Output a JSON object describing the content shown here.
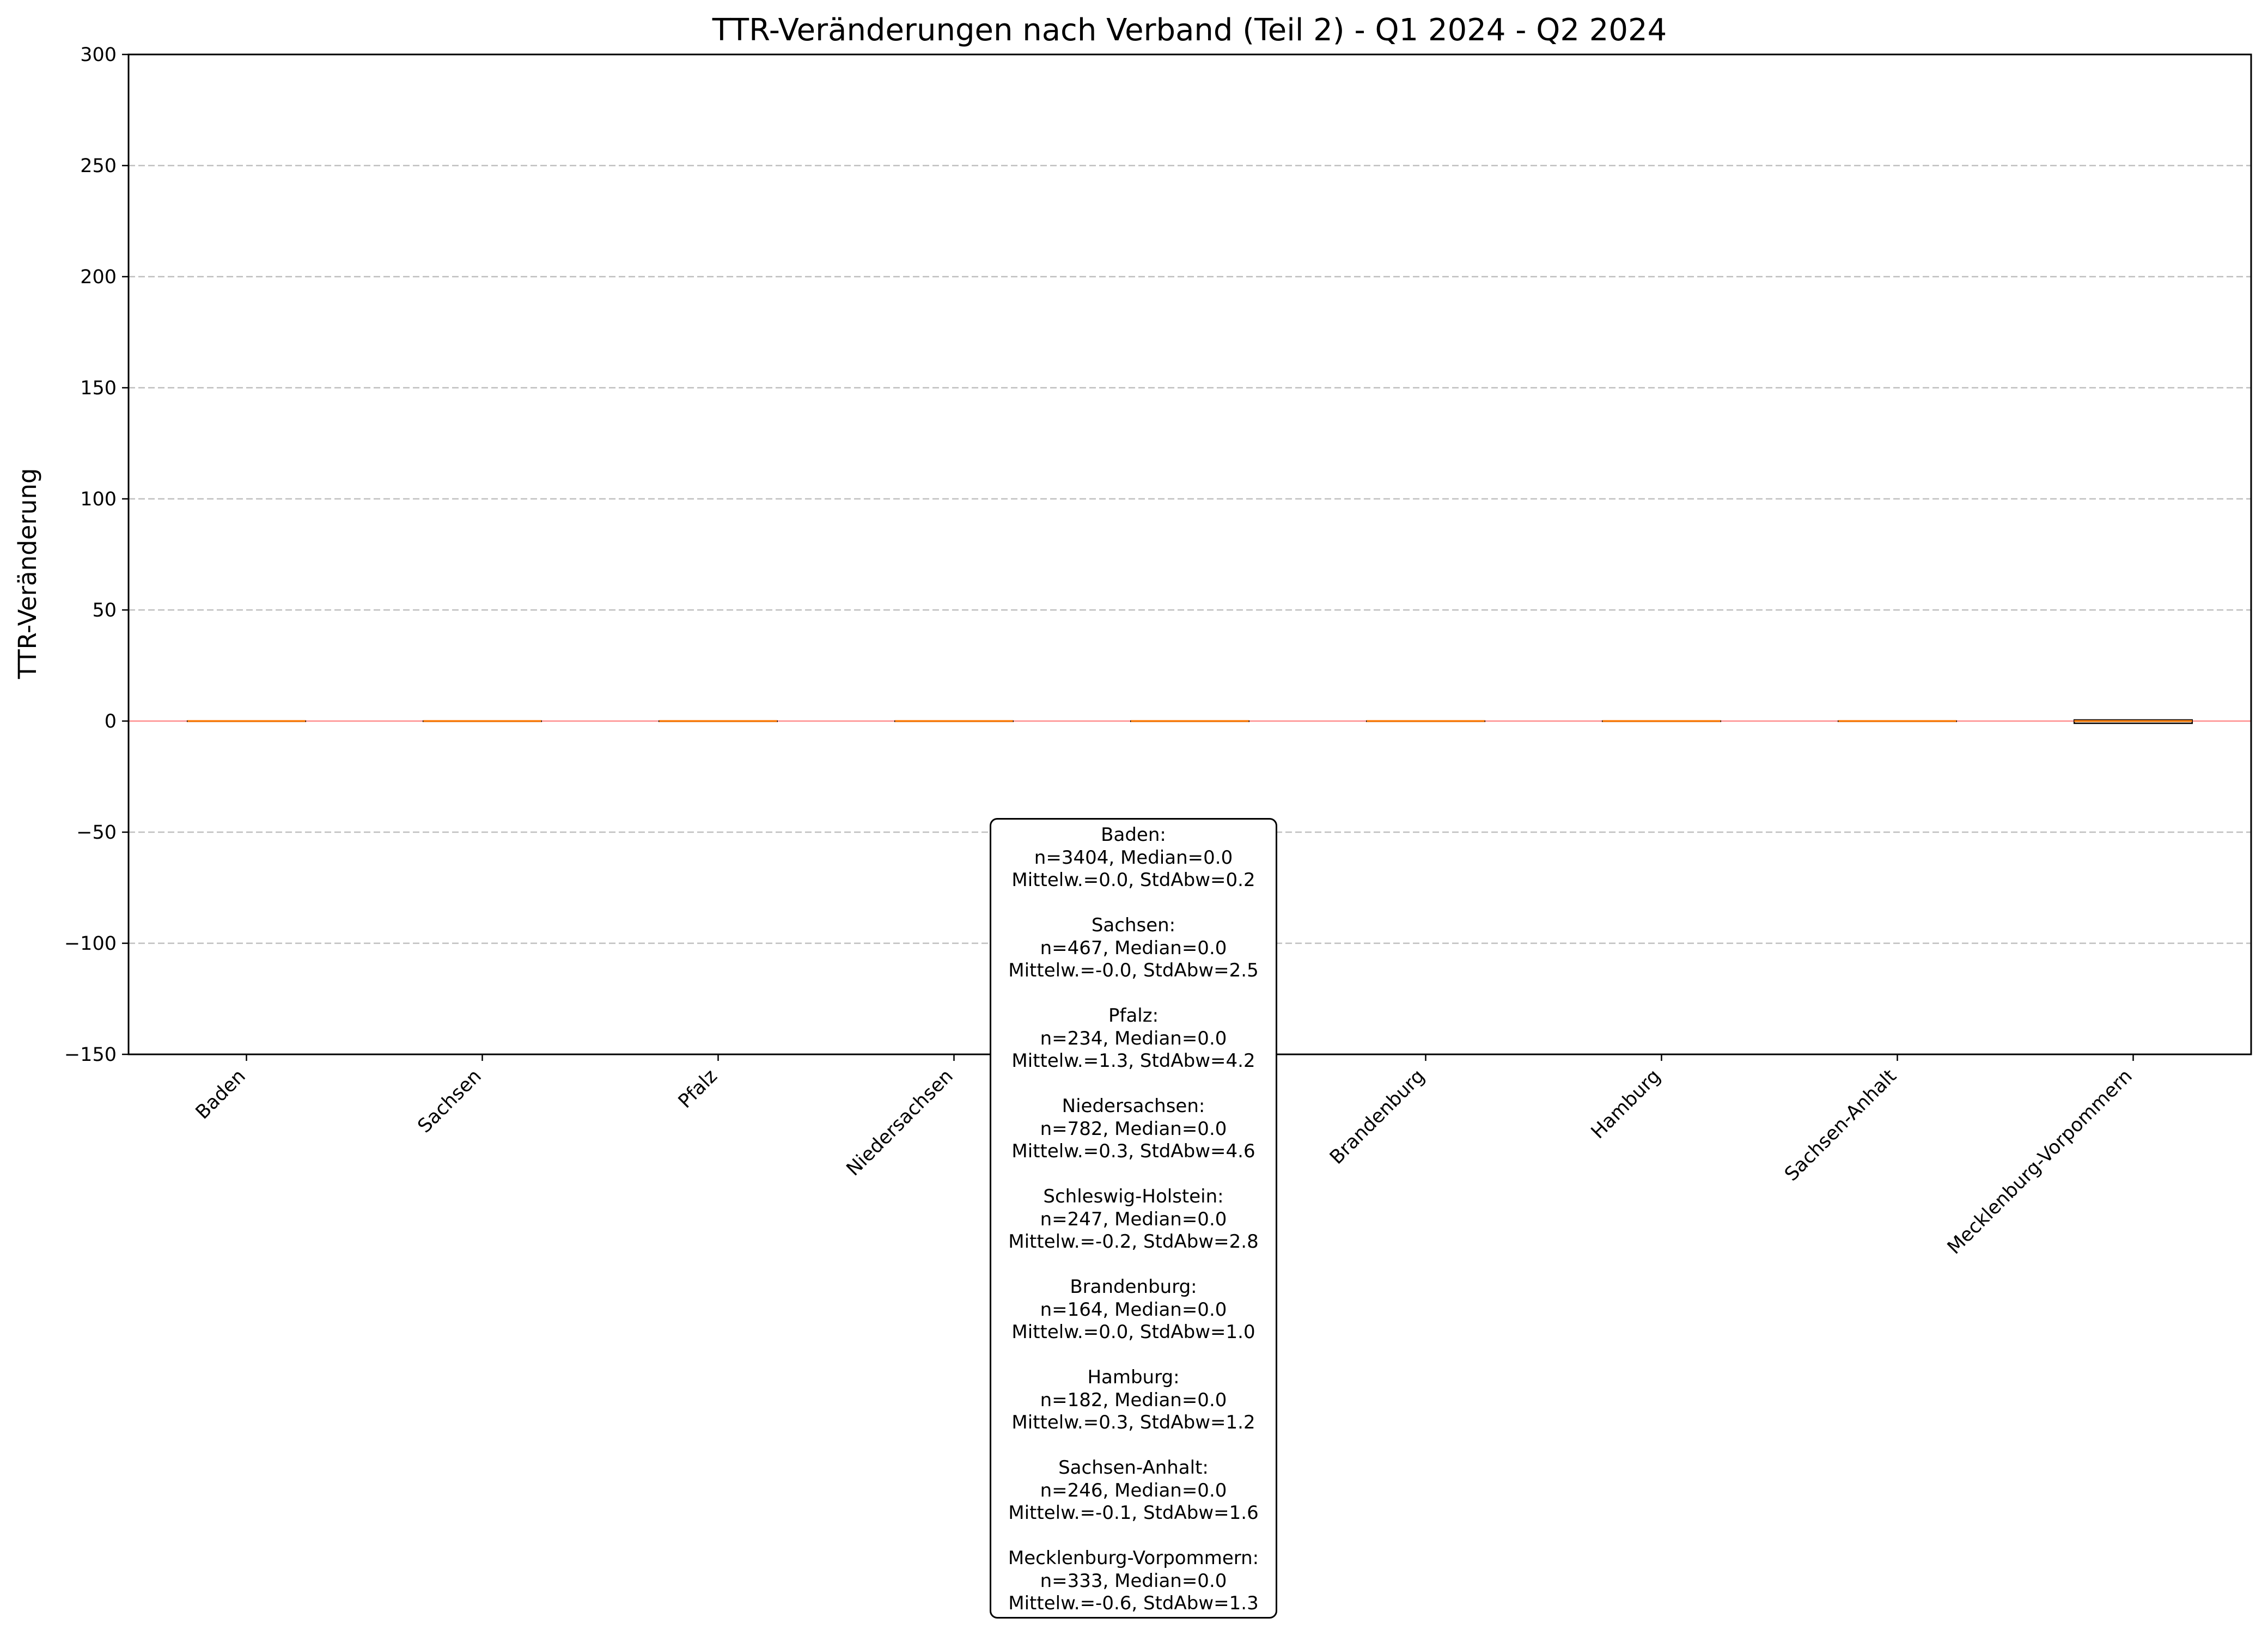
{
  "chart_data": {
    "type": "box",
    "title": "TTR-Veränderungen nach Verband (Teil 2) - Q1 2024 - Q2 2024",
    "xlabel": "",
    "ylabel": "TTR-Veränderung",
    "ylim": [
      -150,
      300
    ],
    "yticks": [
      -150,
      -100,
      -50,
      0,
      50,
      100,
      150,
      200,
      250,
      300
    ],
    "ytick_labels": [
      "−150",
      "−100",
      "−50",
      "0",
      "50",
      "100",
      "150",
      "200",
      "250",
      "300"
    ],
    "grid": "horizontal dashed",
    "reference_line": 0,
    "categories": [
      "Baden",
      "Sachsen",
      "Pfalz",
      "Niedersachsen",
      "Schleswig-Holstein",
      "Brandenburg",
      "Hamburg",
      "Sachsen-Anhalt",
      "Mecklenburg-Vorpommern"
    ],
    "boxes": [
      {
        "q1": 0,
        "median": 0,
        "q3": 0
      },
      {
        "q1": 0,
        "median": 0,
        "q3": 0
      },
      {
        "q1": 0,
        "median": 0,
        "q3": 0
      },
      {
        "q1": 0,
        "median": 0,
        "q3": 0
      },
      {
        "q1": 0,
        "median": 0,
        "q3": 0
      },
      {
        "q1": 0,
        "median": 0,
        "q3": 0
      },
      {
        "q1": 0,
        "median": 0,
        "q3": 0
      },
      {
        "q1": 0,
        "median": 0,
        "q3": 0
      },
      {
        "q1": -1,
        "median": 0,
        "q3": 0.5
      }
    ],
    "colors": {
      "median": "#ff7f0e",
      "reference": "#ff4444",
      "grid": "#b0b0b0",
      "box": "#000000"
    }
  },
  "stats_box": [
    {
      "name": "Baden:",
      "line1": "n=3404, Median=0.0",
      "line2": "Mittelw.=0.0, StdAbw=0.2"
    },
    {
      "name": "Sachsen:",
      "line1": "n=467, Median=0.0",
      "line2": "Mittelw.=-0.0, StdAbw=2.5"
    },
    {
      "name": "Pfalz:",
      "line1": "n=234, Median=0.0",
      "line2": "Mittelw.=1.3, StdAbw=4.2"
    },
    {
      "name": "Niedersachsen:",
      "line1": "n=782, Median=0.0",
      "line2": "Mittelw.=0.3, StdAbw=4.6"
    },
    {
      "name": "Schleswig-Holstein:",
      "line1": "n=247, Median=0.0",
      "line2": "Mittelw.=-0.2, StdAbw=2.8"
    },
    {
      "name": "Brandenburg:",
      "line1": "n=164, Median=0.0",
      "line2": "Mittelw.=0.0, StdAbw=1.0"
    },
    {
      "name": "Hamburg:",
      "line1": "n=182, Median=0.0",
      "line2": "Mittelw.=0.3, StdAbw=1.2"
    },
    {
      "name": "Sachsen-Anhalt:",
      "line1": "n=246, Median=0.0",
      "line2": "Mittelw.=-0.1, StdAbw=1.6"
    },
    {
      "name": "Mecklenburg-Vorpommern:",
      "line1": "n=333, Median=0.0",
      "line2": "Mittelw.=-0.6, StdAbw=1.3"
    }
  ]
}
